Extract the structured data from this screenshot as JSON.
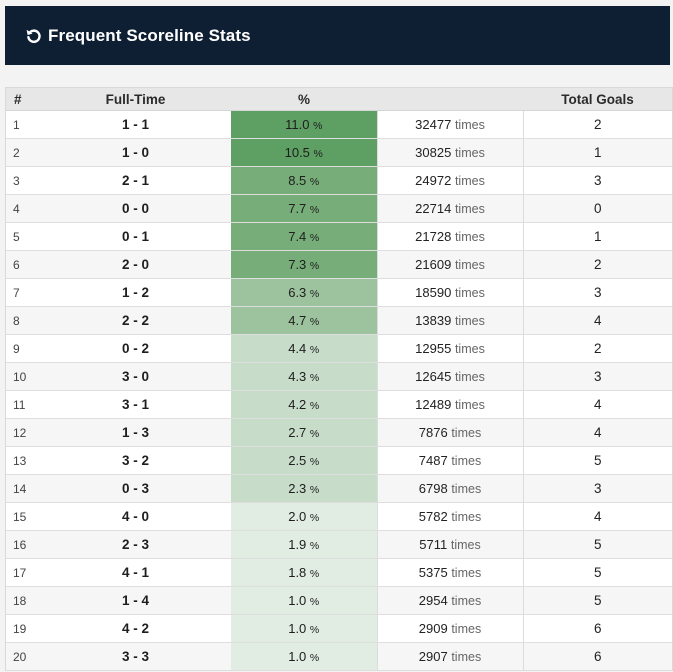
{
  "header": {
    "title": "Frequent Scoreline Stats",
    "icon": "refresh-icon"
  },
  "columns": {
    "rank": "#",
    "full_time": "Full-Time",
    "percent": "%",
    "times": "",
    "total_goals": "Total Goals"
  },
  "units": {
    "percent": "%",
    "times": "times"
  },
  "colors": {
    "tier1": "#5e9f63",
    "tier2": "#76ad78",
    "tier3": "#9cc39e",
    "tier4": "#c8dcca",
    "tier5": "#e1ece2",
    "header_bg": "#0f1f33"
  },
  "rows": [
    {
      "rank": "1",
      "score": "1 - 1",
      "pct": "11.0",
      "times": "32477",
      "goals": "2",
      "tier": 1
    },
    {
      "rank": "2",
      "score": "1 - 0",
      "pct": "10.5",
      "times": "30825",
      "goals": "1",
      "tier": 1
    },
    {
      "rank": "3",
      "score": "2 - 1",
      "pct": "8.5",
      "times": "24972",
      "goals": "3",
      "tier": 2
    },
    {
      "rank": "4",
      "score": "0 - 0",
      "pct": "7.7",
      "times": "22714",
      "goals": "0",
      "tier": 2
    },
    {
      "rank": "5",
      "score": "0 - 1",
      "pct": "7.4",
      "times": "21728",
      "goals": "1",
      "tier": 2
    },
    {
      "rank": "6",
      "score": "2 - 0",
      "pct": "7.3",
      "times": "21609",
      "goals": "2",
      "tier": 2
    },
    {
      "rank": "7",
      "score": "1 - 2",
      "pct": "6.3",
      "times": "18590",
      "goals": "3",
      "tier": 3
    },
    {
      "rank": "8",
      "score": "2 - 2",
      "pct": "4.7",
      "times": "13839",
      "goals": "4",
      "tier": 3
    },
    {
      "rank": "9",
      "score": "0 - 2",
      "pct": "4.4",
      "times": "12955",
      "goals": "2",
      "tier": 4
    },
    {
      "rank": "10",
      "score": "3 - 0",
      "pct": "4.3",
      "times": "12645",
      "goals": "3",
      "tier": 4
    },
    {
      "rank": "11",
      "score": "3 - 1",
      "pct": "4.2",
      "times": "12489",
      "goals": "4",
      "tier": 4
    },
    {
      "rank": "12",
      "score": "1 - 3",
      "pct": "2.7",
      "times": "7876",
      "goals": "4",
      "tier": 4
    },
    {
      "rank": "13",
      "score": "3 - 2",
      "pct": "2.5",
      "times": "7487",
      "goals": "5",
      "tier": 4
    },
    {
      "rank": "14",
      "score": "0 - 3",
      "pct": "2.3",
      "times": "6798",
      "goals": "3",
      "tier": 4
    },
    {
      "rank": "15",
      "score": "4 - 0",
      "pct": "2.0",
      "times": "5782",
      "goals": "4",
      "tier": 5
    },
    {
      "rank": "16",
      "score": "2 - 3",
      "pct": "1.9",
      "times": "5711",
      "goals": "5",
      "tier": 5
    },
    {
      "rank": "17",
      "score": "4 - 1",
      "pct": "1.8",
      "times": "5375",
      "goals": "5",
      "tier": 5
    },
    {
      "rank": "18",
      "score": "1 - 4",
      "pct": "1.0",
      "times": "2954",
      "goals": "5",
      "tier": 5
    },
    {
      "rank": "19",
      "score": "4 - 2",
      "pct": "1.0",
      "times": "2909",
      "goals": "6",
      "tier": 5
    },
    {
      "rank": "20",
      "score": "3 - 3",
      "pct": "1.0",
      "times": "2907",
      "goals": "6",
      "tier": 5
    }
  ]
}
